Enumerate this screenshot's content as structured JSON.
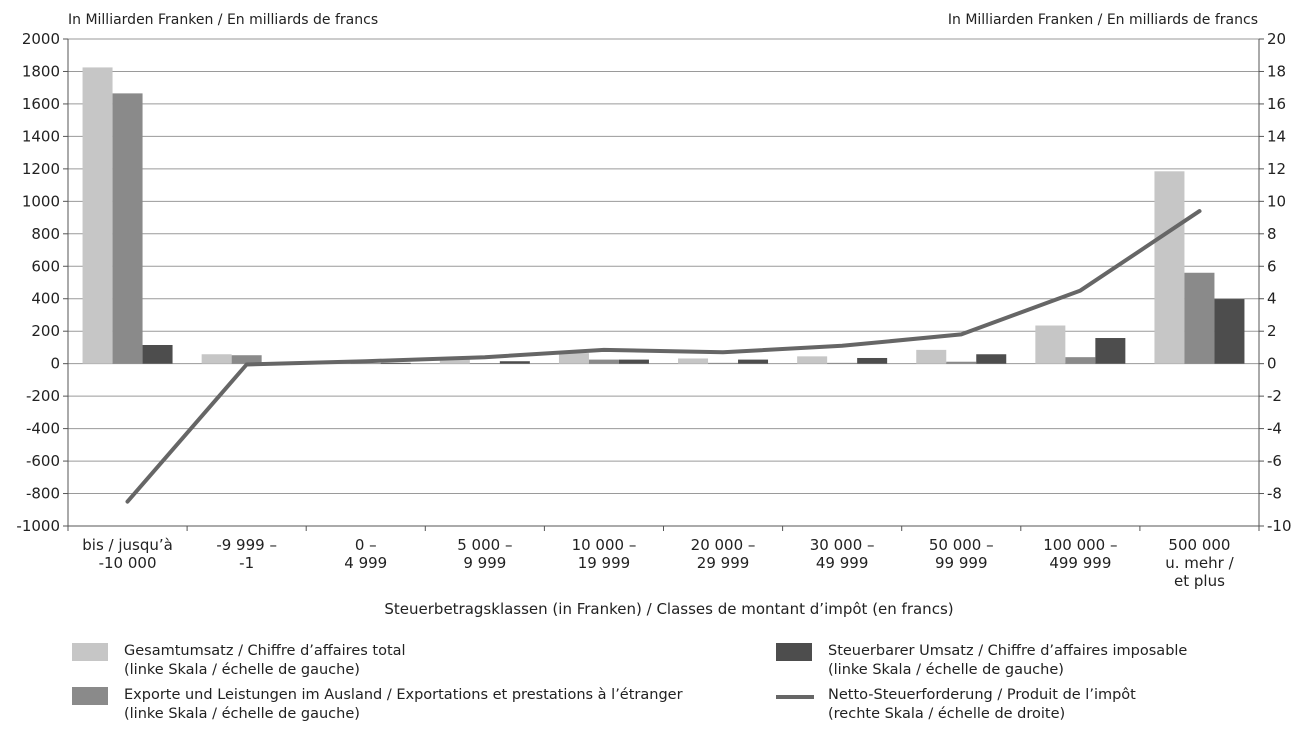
{
  "chart_data": {
    "type": "bar",
    "left_axis_label": "In Milliarden Franken / En milliards de francs",
    "right_axis_label": "In Milliarden Franken / En milliards de francs",
    "xlabel": "Steuerbetragsklassen (in Franken) / Classes de montant d’impôt (en francs)",
    "ylim_left": [
      -1000,
      2000
    ],
    "ylim_right": [
      -10,
      20
    ],
    "yticks_left": [
      2000,
      1800,
      1600,
      1400,
      1200,
      1000,
      800,
      600,
      400,
      200,
      0,
      -200,
      -400,
      -600,
      -800,
      -1000
    ],
    "yticks_right": [
      20,
      18,
      16,
      14,
      12,
      10,
      8,
      6,
      4,
      2,
      0,
      -2,
      -4,
      -6,
      -8,
      -10
    ],
    "grid": true,
    "categories": [
      [
        "bis / jusqu’à",
        "-10 000"
      ],
      [
        "-9 999 –",
        "-1"
      ],
      [
        "0 –",
        "4 999"
      ],
      [
        "5 000 –",
        "9 999"
      ],
      [
        "10 000 –",
        "19 999"
      ],
      [
        "20 000 –",
        "29 999"
      ],
      [
        "30 000 –",
        "49 999"
      ],
      [
        "50 000 –",
        "99 999"
      ],
      [
        "100 000 –",
        "499 999"
      ],
      [
        "500 000",
        "u. mehr /",
        "et plus"
      ]
    ],
    "series": [
      {
        "name": "Gesamtumsatz / Chiffre d’affaires total",
        "axis": "left",
        "kind": "bar",
        "color": "#c6c6c6",
        "values": [
          1825,
          58,
          12,
          30,
          65,
          32,
          45,
          85,
          235,
          1185
        ]
      },
      {
        "name": "Exporte und Leistungen im Ausland / Exportations et prestations à l’étranger",
        "axis": "left",
        "kind": "bar",
        "color": "#8a8a8a",
        "values": [
          1665,
          52,
          2,
          4,
          25,
          5,
          5,
          12,
          40,
          560
        ]
      },
      {
        "name": "Steuerbarer Umsatz / Chiffre d’affaires imposable",
        "axis": "left",
        "kind": "bar",
        "color": "#4d4d4d",
        "values": [
          115,
          4,
          5,
          15,
          25,
          25,
          35,
          58,
          158,
          398
        ]
      },
      {
        "name": "Netto-Steuerforderung / Produit de l’impôt",
        "axis": "right",
        "kind": "line",
        "color": "#666666",
        "values": [
          -8.5,
          -0.05,
          0.15,
          0.4,
          0.85,
          0.7,
          1.1,
          1.8,
          4.5,
          9.4
        ]
      }
    ]
  },
  "legend": [
    {
      "line1": "Gesamtumsatz / Chiffre d’affaires total",
      "line2": "(linke Skala / échelle de gauche)",
      "color": "#c6c6c6",
      "kind": "box"
    },
    {
      "line1": "Exporte und Leistungen im Ausland / Exportations et prestations à l’étranger",
      "line2": "(linke Skala / échelle de gauche)",
      "color": "#8a8a8a",
      "kind": "box"
    },
    {
      "line1": "Steuerbarer Umsatz / Chiffre d’affaires imposable",
      "line2": "(linke Skala / échelle de gauche)",
      "color": "#4d4d4d",
      "kind": "box"
    },
    {
      "line1": "Netto-Steuerforderung / Produit de l’impôt",
      "line2": "(rechte Skala / échelle de droite)",
      "color": "#666666",
      "kind": "line"
    }
  ]
}
